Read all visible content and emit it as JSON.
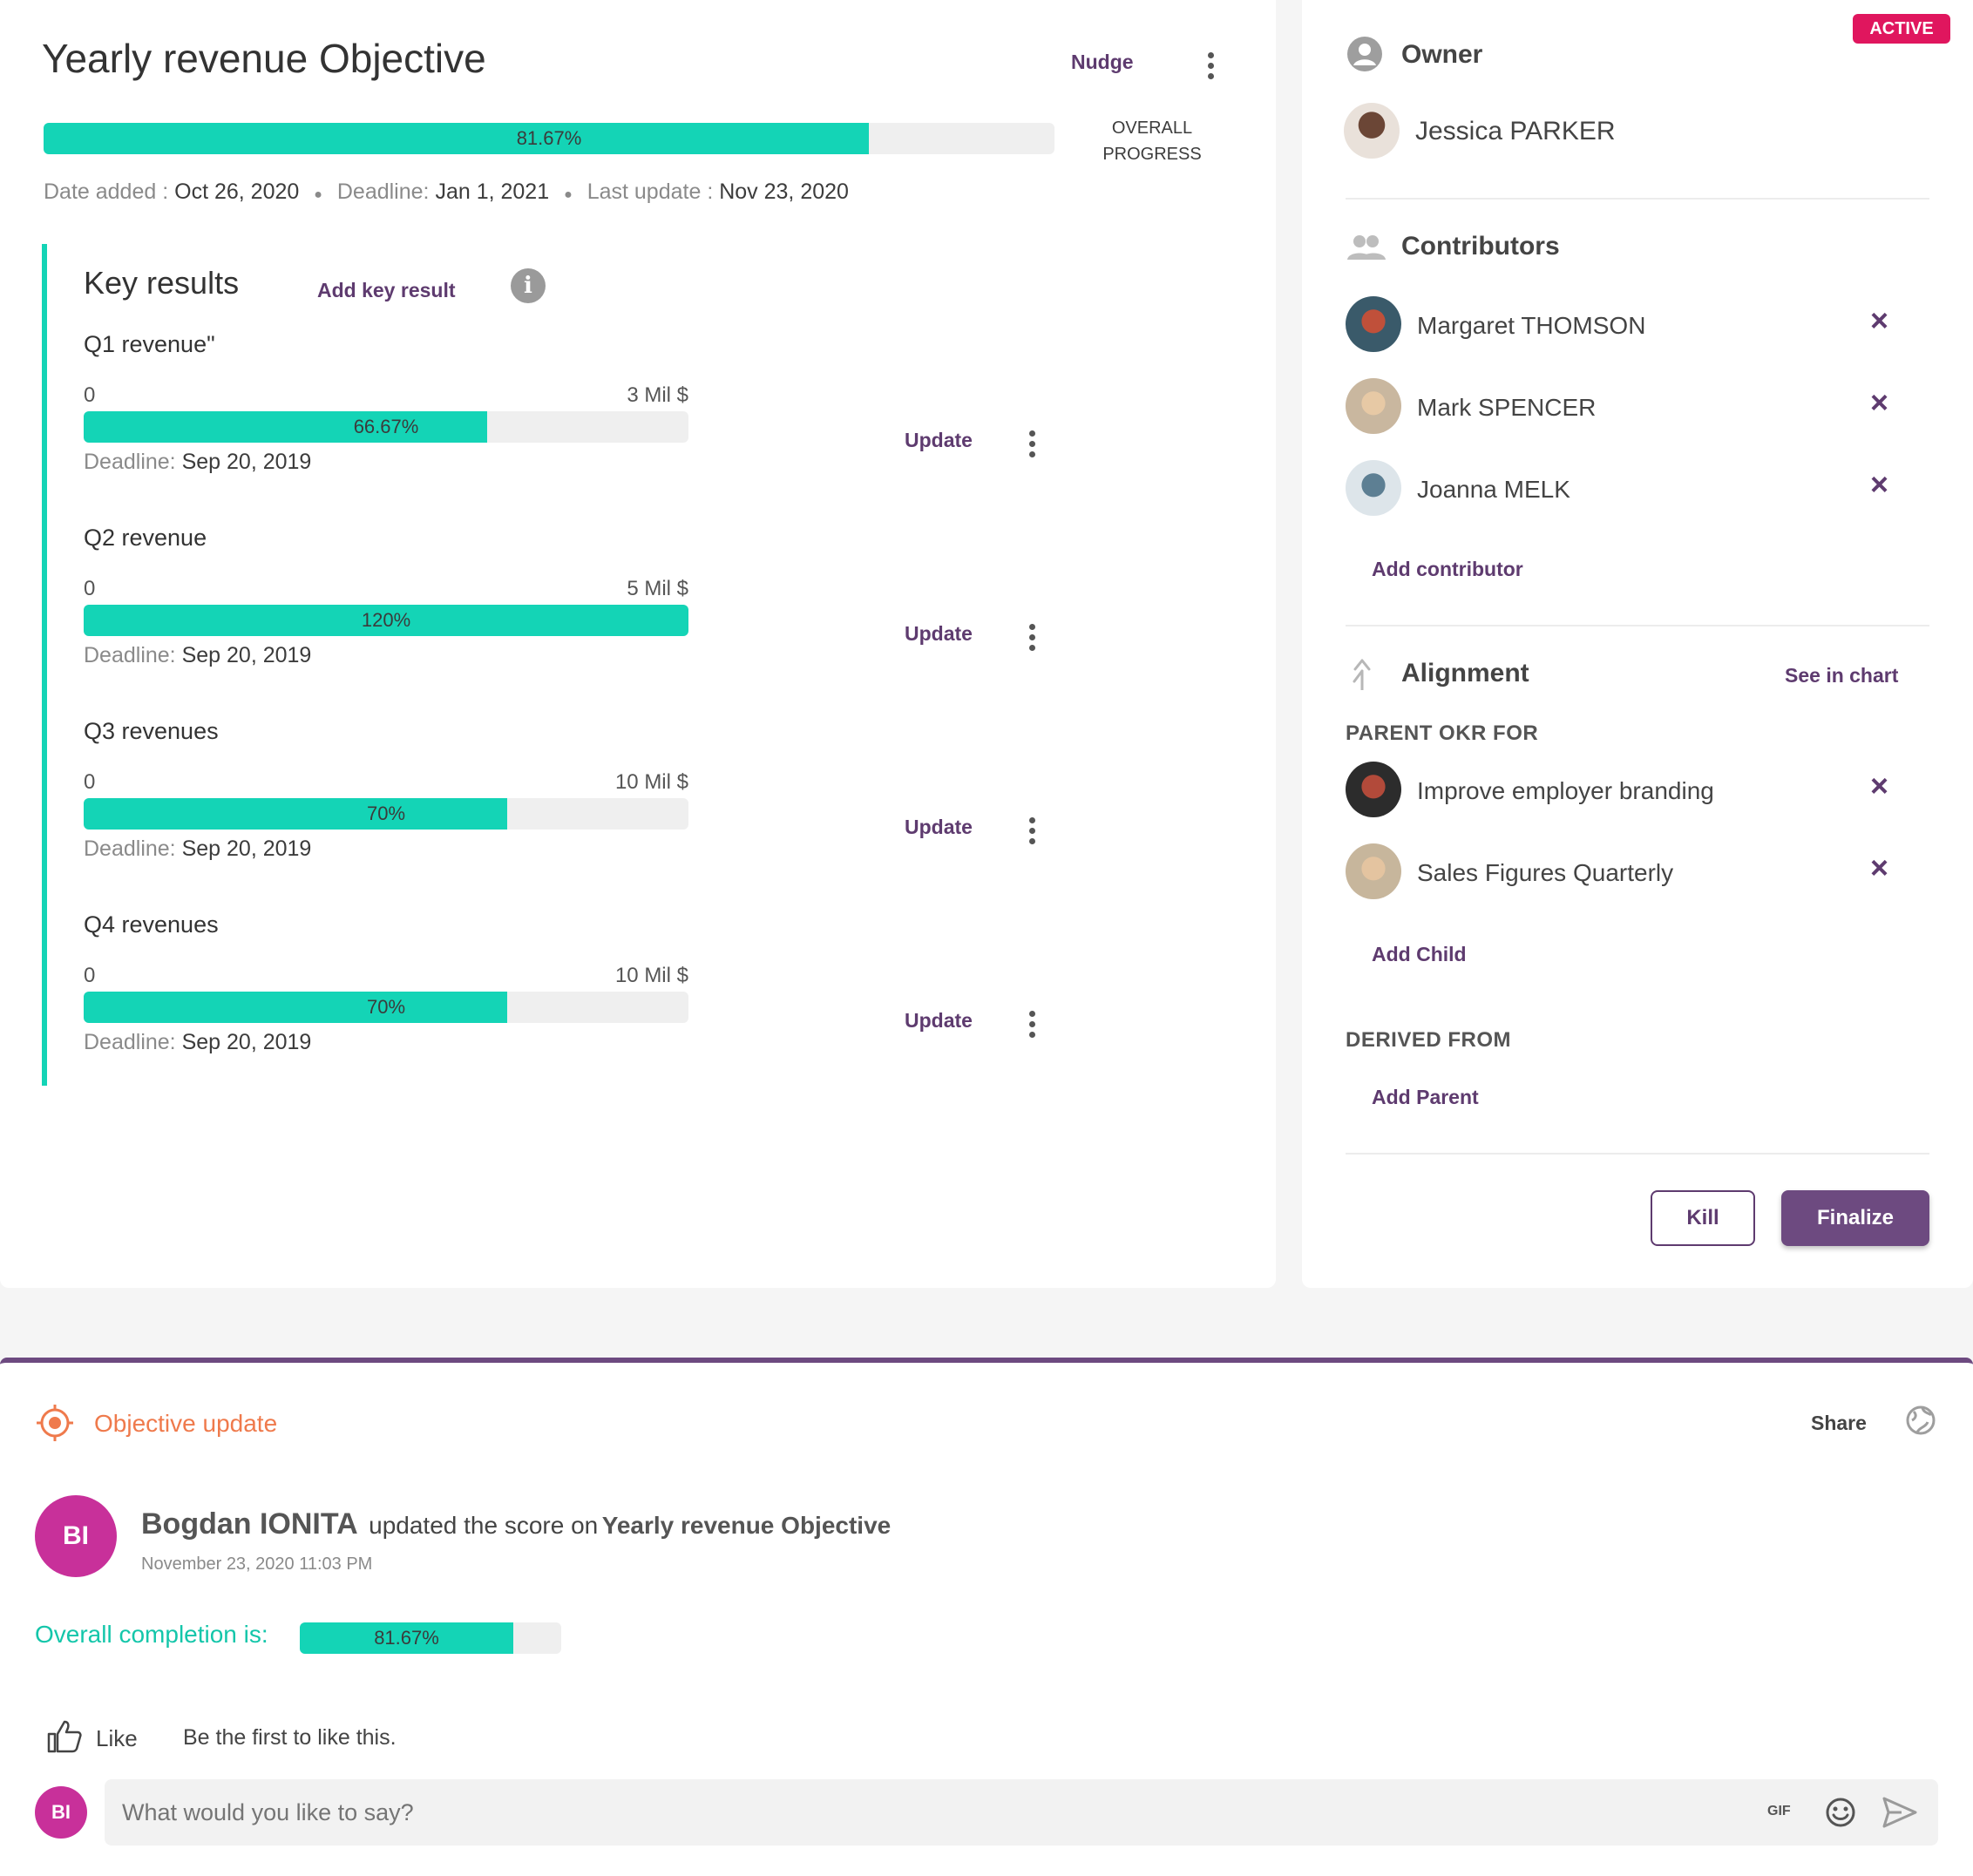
{
  "objective": {
    "title": "Yearly revenue Objective",
    "nudge_label": "Nudge",
    "progress_label": "81.67%",
    "progress_value": 0.8167,
    "overall_progress_line1": "OVERALL",
    "overall_progress_line2": "PROGRESS",
    "date_added_label": "Date added :",
    "date_added": "Oct 26, 2020",
    "deadline_label": "Deadline:",
    "deadline": "Jan 1, 2021",
    "last_update_label": "Last update :",
    "last_update": "Nov 23, 2020"
  },
  "key_results": {
    "title": "Key results",
    "add_label": "Add key result",
    "update_label": "Update",
    "deadline_label": "Deadline:",
    "items": [
      {
        "name": "Q1 revenue\"",
        "min": "0",
        "max": "3 Mil $",
        "percent": "66.67%",
        "value": 0.6667,
        "deadline": "Sep 20, 2019"
      },
      {
        "name": "Q2 revenue",
        "min": "0",
        "max": "5 Mil $",
        "percent": "120%",
        "value": 1.0,
        "deadline": "Sep 20, 2019"
      },
      {
        "name": "Q3 revenues",
        "min": "0",
        "max": "10 Mil $",
        "percent": "70%",
        "value": 0.7,
        "deadline": "Sep 20, 2019"
      },
      {
        "name": "Q4 revenues",
        "min": "0",
        "max": "10 Mil $",
        "percent": "70%",
        "value": 0.7,
        "deadline": "Sep 20, 2019"
      }
    ]
  },
  "side": {
    "status_badge": "ACTIVE",
    "owner_title": "Owner",
    "owner_name": "Jessica PARKER",
    "contributors_title": "Contributors",
    "contributors": [
      "Margaret THOMSON",
      "Mark SPENCER",
      "Joanna MELK"
    ],
    "add_contributor": "Add contributor",
    "alignment_title": "Alignment",
    "see_in_chart": "See in chart",
    "parent_okr_for": "PARENT OKR FOR",
    "parents": [
      "Improve employer branding",
      "Sales Figures Quarterly"
    ],
    "add_child": "Add Child",
    "derived_from": "DERIVED FROM",
    "add_parent": "Add Parent",
    "kill_label": "Kill",
    "finalize_label": "Finalize"
  },
  "feed": {
    "section_title": "Objective update",
    "share_label": "Share",
    "author_initials": "BI",
    "author_name": "Bogdan IONITA",
    "action_text": "updated the score on",
    "target": "Yearly revenue Objective",
    "timestamp": "November 23, 2020 11:03 PM",
    "completion_label": "Overall completion is:",
    "completion_percent": "81.67%",
    "completion_value": 0.8167,
    "like_label": "Like",
    "like_hint": "Be the first to like this.",
    "comment_placeholder": "What would you like to say?",
    "gif_label": "GIF"
  },
  "colors": {
    "accent": "#5e3b6f",
    "progress": "#14d4b6",
    "badge": "#e0165e",
    "feed_title": "#ef7a4c",
    "completion_label": "#14c6aa"
  }
}
